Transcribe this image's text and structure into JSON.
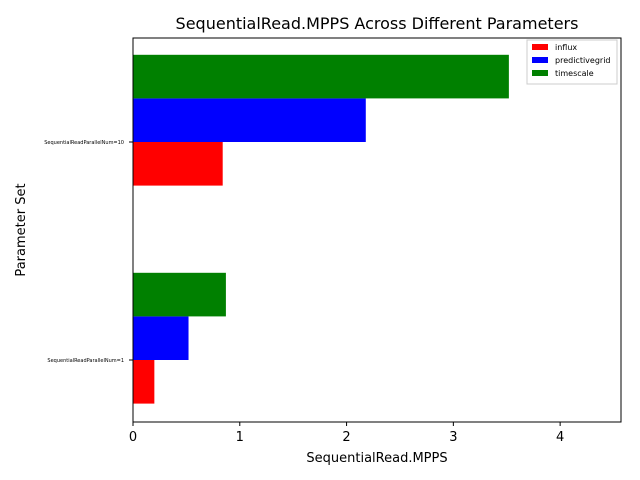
{
  "chart_data": {
    "type": "bar",
    "orientation": "horizontal",
    "title": "SequentialRead.MPPS Across Different Parameters",
    "xlabel": "SequentialRead.MPPS",
    "ylabel": "Parameter Set",
    "categories": [
      "SequentialReadParallelNum=1",
      "SequentialReadParallelNum=10"
    ],
    "series": [
      {
        "name": "influx",
        "color": "#ff0000",
        "values": [
          0.2,
          0.84
        ]
      },
      {
        "name": "predictivegrid",
        "color": "#0000ff",
        "values": [
          0.52,
          2.18
        ]
      },
      {
        "name": "timescale",
        "color": "#008000",
        "values": [
          0.87,
          3.52
        ]
      }
    ],
    "xlim": [
      0,
      4.57
    ],
    "xticks": [
      0,
      1,
      2,
      3,
      4
    ],
    "grid": false,
    "legend_position": "top-right"
  }
}
